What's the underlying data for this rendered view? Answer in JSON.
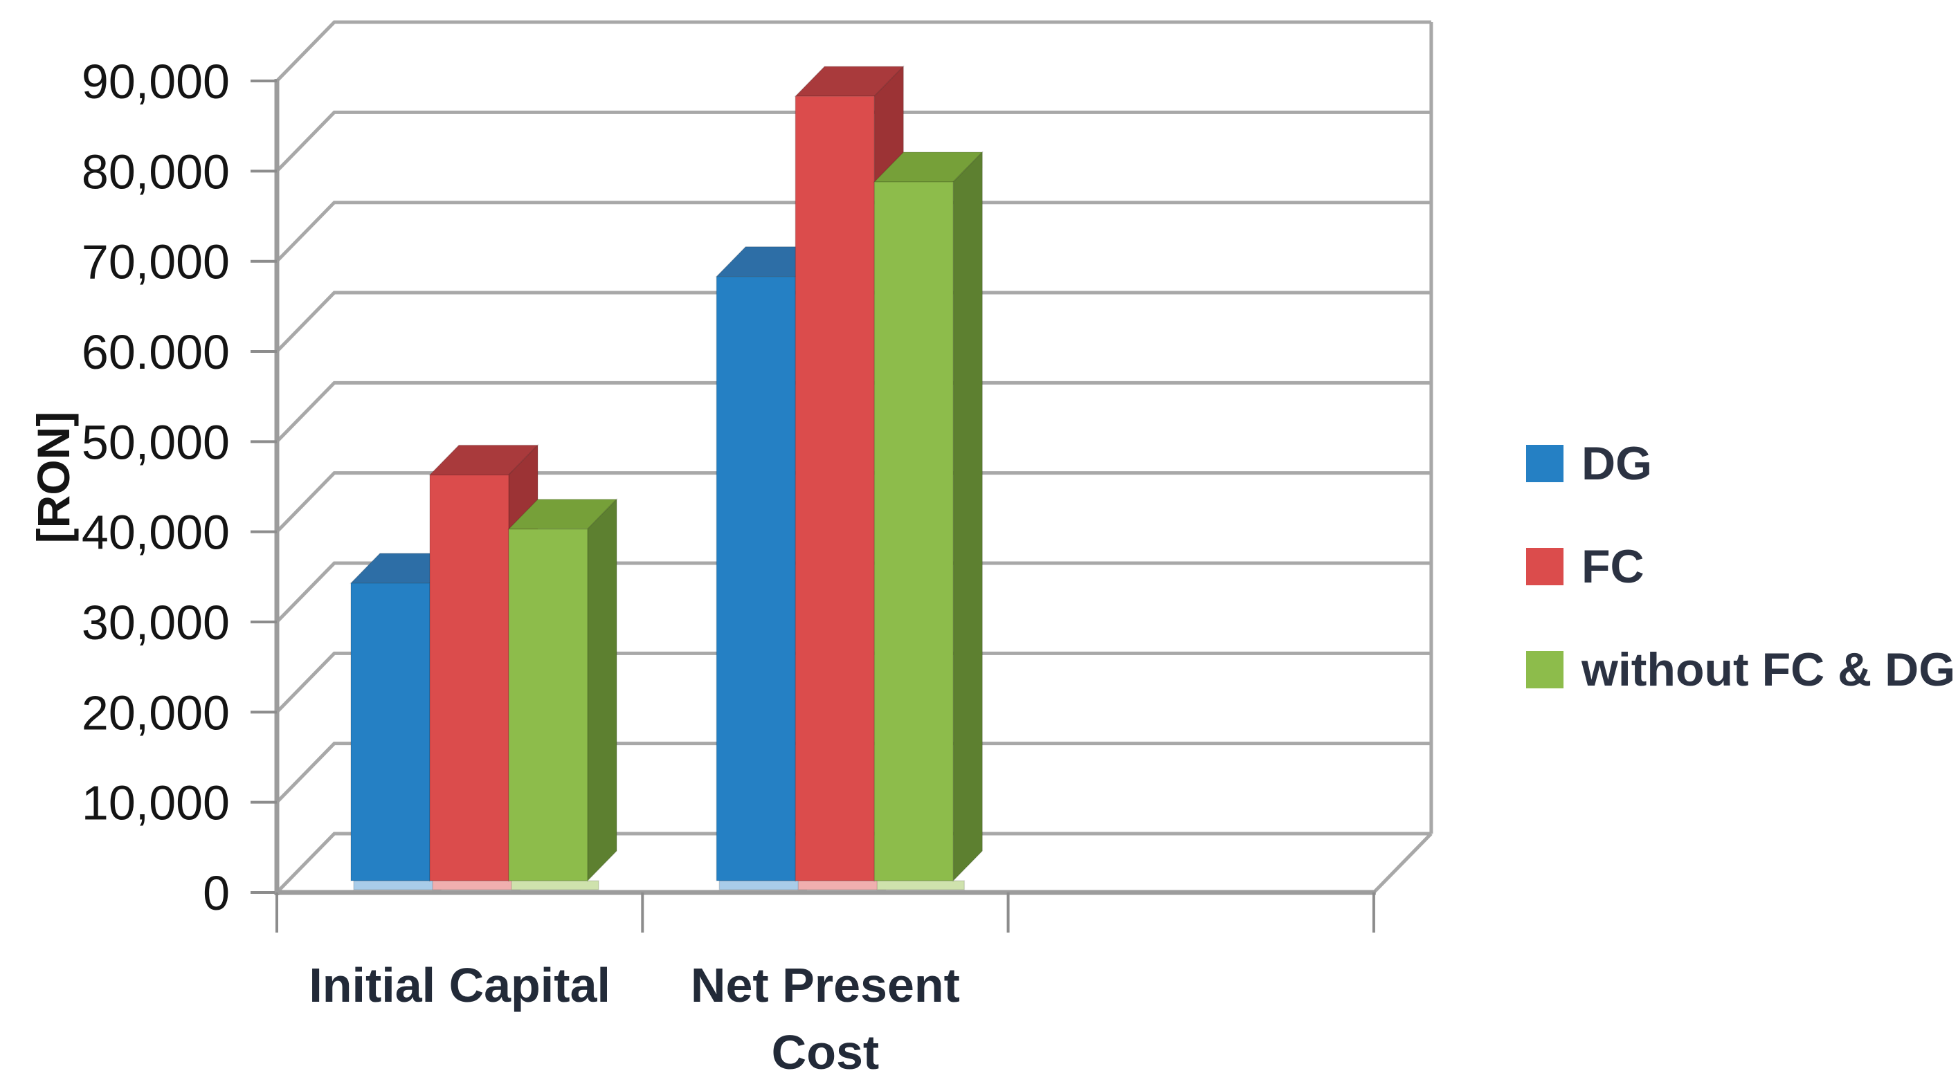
{
  "chart_data": {
    "type": "bar",
    "style": "3d-clustered-column",
    "title": "",
    "categories": [
      "Initial Capital",
      "Net Present Cost"
    ],
    "category_label_lines": [
      [
        "Initial Capital"
      ],
      [
        "Net Present",
        "Cost"
      ]
    ],
    "series": [
      {
        "name": "DG",
        "values": [
          33000,
          67000
        ],
        "color": "#2580C4",
        "color_top": "#2D6EA6",
        "color_side": "#175B95",
        "color_base": "#A9CCE9"
      },
      {
        "name": "FC",
        "values": [
          45000,
          87000
        ],
        "color": "#DB4C4C",
        "color_top": "#A93A3C",
        "color_side": "#9C3335",
        "color_base": "#F0AFAF"
      },
      {
        "name": "without FC & DG",
        "values": [
          39000,
          77500
        ],
        "color": "#8DBC4B",
        "color_top": "#76A039",
        "color_side": "#5D8030",
        "color_base": "#CFE2AD"
      }
    ],
    "xlabel": "",
    "ylabel": "[RON]",
    "ylim": [
      0,
      90000
    ],
    "ytick_step": 10000,
    "ytick_labels": [
      "0",
      "10,000",
      "20,000",
      "30,000",
      "40,000",
      "50,000",
      "60.000",
      "70,000",
      "80,000",
      "90,000"
    ],
    "grid": true,
    "x_slot_count": 3,
    "legend_position": "right",
    "colors": {
      "background": "#FFFFFF",
      "gridline": "#A8A8A8",
      "axis": "#9C9C9C",
      "tick": "#8C8C8C",
      "ytick_label": "#141414",
      "category_label": "#222A38",
      "ylabel": "#141414"
    }
  },
  "legend": {
    "items": [
      {
        "label": "DG",
        "color": "#2580C4"
      },
      {
        "label": "FC",
        "color": "#DB4C4C"
      },
      {
        "label": "without FC & DG",
        "color": "#8DBC4B"
      }
    ]
  }
}
